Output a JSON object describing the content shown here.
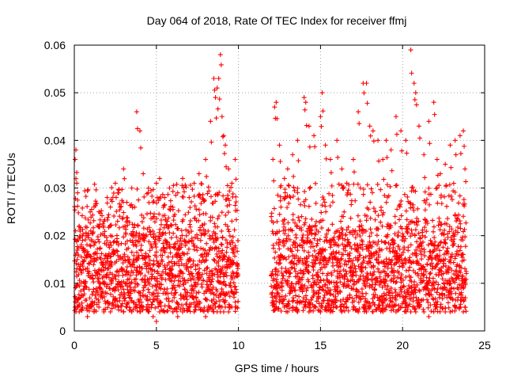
{
  "chart_data": {
    "type": "scatter",
    "title": "Day 064 of 2018, Rate Of TEC Index for receiver ffmj",
    "xlabel": "GPS time / hours",
    "ylabel": "ROTI / TECUs",
    "xlim": [
      0,
      25
    ],
    "ylim": [
      0,
      0.06
    ],
    "x_ticks": [
      0,
      5,
      10,
      15,
      20,
      25
    ],
    "x_tick_labels": [
      "0",
      "5",
      "10",
      "15",
      "20",
      "25"
    ],
    "y_ticks": [
      0,
      0.01,
      0.02,
      0.03,
      0.04,
      0.05,
      0.06
    ],
    "y_tick_labels": [
      "0",
      "0.01",
      "0.02",
      "0.03",
      "0.04",
      "0.05",
      "0.06"
    ],
    "grid": true,
    "marker": "+",
    "series": [
      {
        "name": "ROTI",
        "color": "#ff0000",
        "x": [
          0.05,
          0.1,
          0.15,
          0.2,
          0.3,
          0.5,
          0.8,
          1.0,
          1.2,
          1.5,
          1.8,
          2.0,
          2.2,
          2.5,
          2.7,
          3.0,
          3.2,
          3.5,
          3.8,
          4.0,
          4.2,
          4.5,
          4.8,
          5.0,
          5.2,
          5.5,
          5.8,
          6.0,
          6.3,
          6.6,
          7.0,
          7.3,
          7.6,
          8.0,
          8.3,
          8.5,
          8.6,
          8.7,
          8.8,
          8.9,
          9.0,
          9.1,
          9.2,
          9.4,
          9.6,
          9.8,
          12.1,
          12.2,
          12.3,
          12.5,
          12.8,
          13.0,
          13.3,
          13.6,
          14.0,
          14.1,
          14.3,
          14.6,
          15.0,
          15.1,
          15.3,
          15.6,
          16.0,
          16.3,
          16.6,
          17.0,
          17.3,
          17.6,
          17.8,
          18.0,
          18.2,
          18.5,
          18.8,
          19.0,
          19.3,
          19.6,
          19.9,
          20.2,
          20.5,
          20.7,
          20.8,
          21.0,
          21.3,
          21.6,
          21.9,
          22.1,
          22.3,
          22.6,
          22.9,
          23.2,
          23.5,
          23.7,
          23.8
        ],
        "y": [
          0.036,
          0.038,
          0.031,
          0.029,
          0.022,
          0.019,
          0.016,
          0.021,
          0.018,
          0.025,
          0.023,
          0.028,
          0.026,
          0.031,
          0.029,
          0.034,
          0.027,
          0.03,
          0.046,
          0.042,
          0.033,
          0.029,
          0.027,
          0.031,
          0.032,
          0.028,
          0.03,
          0.026,
          0.029,
          0.032,
          0.028,
          0.031,
          0.033,
          0.036,
          0.044,
          0.053,
          0.049,
          0.051,
          0.053,
          0.058,
          0.045,
          0.041,
          0.039,
          0.034,
          0.031,
          0.036,
          0.036,
          0.047,
          0.048,
          0.039,
          0.032,
          0.034,
          0.037,
          0.04,
          0.049,
          0.048,
          0.043,
          0.041,
          0.045,
          0.05,
          0.039,
          0.036,
          0.04,
          0.034,
          0.031,
          0.036,
          0.046,
          0.052,
          0.052,
          0.043,
          0.042,
          0.04,
          0.036,
          0.04,
          0.038,
          0.045,
          0.042,
          0.04,
          0.059,
          0.052,
          0.05,
          0.043,
          0.037,
          0.044,
          0.048,
          0.036,
          0.033,
          0.035,
          0.039,
          0.04,
          0.041,
          0.042,
          0.034
        ],
        "y_min": [
          0.005,
          0.004,
          0.006,
          0.005,
          0.004,
          0.005,
          0.003,
          0.005,
          0.004,
          0.005,
          0.004,
          0.006,
          0.004,
          0.005,
          0.005,
          0.004,
          0.005,
          0.004,
          0.005,
          0.004,
          0.005,
          0.004,
          0.003,
          0.002,
          0.004,
          0.004,
          0.005,
          0.004,
          0.003,
          0.004,
          0.005,
          0.004,
          0.005,
          0.003,
          0.005,
          0.004,
          0.005,
          0.004,
          0.005,
          0.004,
          0.005,
          0.004,
          0.005,
          0.004,
          0.005,
          0.005,
          0.006,
          0.005,
          0.005,
          0.006,
          0.005,
          0.004,
          0.005,
          0.004,
          0.005,
          0.005,
          0.004,
          0.005,
          0.004,
          0.005,
          0.005,
          0.004,
          0.005,
          0.004,
          0.005,
          0.005,
          0.004,
          0.005,
          0.004,
          0.005,
          0.004,
          0.005,
          0.004,
          0.005,
          0.005,
          0.004,
          0.005,
          0.005,
          0.004,
          0.005,
          0.004,
          0.005,
          0.004,
          0.003,
          0.004,
          0.005,
          0.005,
          0.004,
          0.004,
          0.005,
          0.005,
          0.004,
          0.005
        ]
      }
    ],
    "data_gap_hours": [
      10.0,
      12.0
    ],
    "typical_range": [
      0.004,
      0.025
    ]
  }
}
